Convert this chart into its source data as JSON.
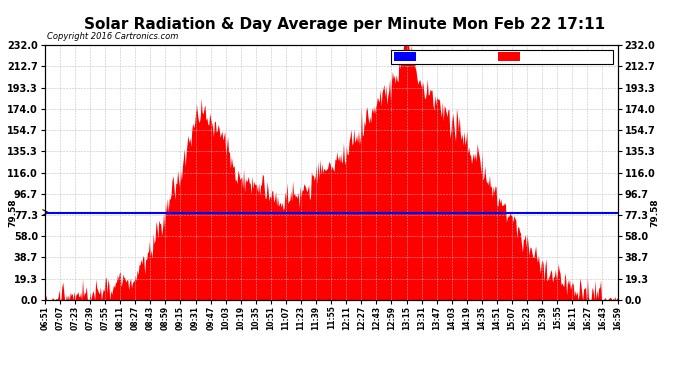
{
  "title": "Solar Radiation & Day Average per Minute Mon Feb 22 17:11",
  "copyright": "Copyright 2016 Cartronics.com",
  "median_value": 79.58,
  "yticks": [
    0.0,
    19.3,
    38.7,
    58.0,
    77.3,
    96.7,
    116.0,
    135.3,
    154.7,
    174.0,
    193.3,
    212.7,
    232.0
  ],
  "ymax": 232.0,
  "ymin": 0.0,
  "bar_color": "#FF0000",
  "median_color": "#0000FF",
  "background_color": "#FFFFFF",
  "grid_color": "#BBBBBB",
  "title_fontsize": 11,
  "xtick_labels": [
    "06:51",
    "07:07",
    "07:23",
    "07:39",
    "07:55",
    "08:11",
    "08:27",
    "08:43",
    "08:59",
    "09:15",
    "09:31",
    "09:47",
    "10:03",
    "10:19",
    "10:35",
    "10:51",
    "11:07",
    "11:23",
    "11:39",
    "11:55",
    "12:11",
    "12:27",
    "12:43",
    "12:59",
    "13:15",
    "13:31",
    "13:47",
    "14:03",
    "14:19",
    "14:35",
    "14:51",
    "15:07",
    "15:23",
    "15:39",
    "15:55",
    "16:11",
    "16:27",
    "16:43",
    "16:59"
  ],
  "n_minutes": 609,
  "seed": 77,
  "envelope_points": [
    [
      0,
      2
    ],
    [
      30,
      4
    ],
    [
      60,
      8
    ],
    [
      90,
      18
    ],
    [
      110,
      35
    ],
    [
      130,
      65
    ],
    [
      150,
      100
    ],
    [
      160,
      120
    ],
    [
      170,
      128
    ],
    [
      180,
      125
    ],
    [
      190,
      118
    ],
    [
      200,
      110
    ],
    [
      210,
      108
    ],
    [
      220,
      108
    ],
    [
      230,
      105
    ],
    [
      240,
      98
    ],
    [
      250,
      92
    ],
    [
      260,
      95
    ],
    [
      270,
      100
    ],
    [
      280,
      108
    ],
    [
      290,
      115
    ],
    [
      300,
      118
    ],
    [
      310,
      125
    ],
    [
      320,
      135
    ],
    [
      330,
      148
    ],
    [
      340,
      162
    ],
    [
      350,
      175
    ],
    [
      360,
      188
    ],
    [
      370,
      198
    ],
    [
      375,
      210
    ],
    [
      380,
      222
    ],
    [
      384,
      232
    ],
    [
      388,
      225
    ],
    [
      392,
      215
    ],
    [
      396,
      205
    ],
    [
      400,
      195
    ],
    [
      410,
      185
    ],
    [
      420,
      175
    ],
    [
      430,
      165
    ],
    [
      440,
      155
    ],
    [
      450,
      140
    ],
    [
      460,
      125
    ],
    [
      470,
      108
    ],
    [
      480,
      92
    ],
    [
      490,
      78
    ],
    [
      500,
      65
    ],
    [
      510,
      52
    ],
    [
      520,
      40
    ],
    [
      530,
      30
    ],
    [
      540,
      22
    ],
    [
      550,
      16
    ],
    [
      560,
      10
    ],
    [
      580,
      5
    ],
    [
      608,
      2
    ]
  ]
}
